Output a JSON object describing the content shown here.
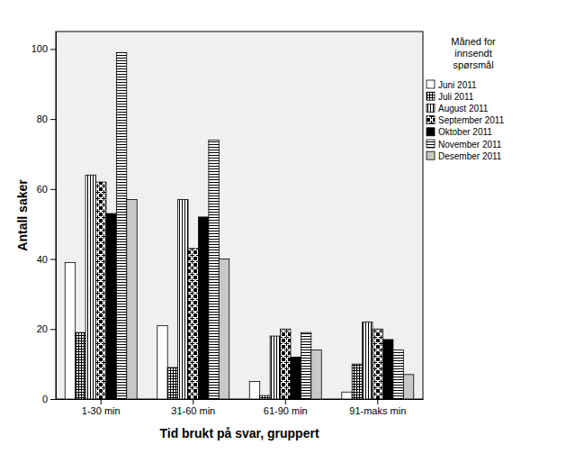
{
  "chart_data": {
    "type": "bar",
    "x_label": "Tid brukt på svar, gruppert",
    "y_label": "Antall saker",
    "legend_title": [
      "Måned for",
      "innsendt",
      "spørsmål"
    ],
    "categories": [
      "1-30 min",
      "31-60 min",
      "61-90 min",
      "91-maks min"
    ],
    "series": [
      {
        "name": "Juni 2011",
        "color": "#ffffff",
        "values": [
          39,
          21,
          5,
          2
        ]
      },
      {
        "name": "Juli 2011",
        "color": "#ffffff",
        "values": [
          19,
          9,
          1,
          10
        ]
      },
      {
        "name": "August 2011",
        "color": "#ffffff",
        "values": [
          64,
          57,
          18,
          22
        ]
      },
      {
        "name": "September 2011",
        "color": "#ffffff",
        "values": [
          62,
          43,
          20,
          20
        ]
      },
      {
        "name": "Oktober 2011",
        "color": "#000000",
        "values": [
          53,
          52,
          12,
          17
        ]
      },
      {
        "name": "November 2011",
        "color": "#ffffff",
        "values": [
          99,
          74,
          19,
          14
        ]
      },
      {
        "name": "Desember 2011",
        "color": "#c8c8c8",
        "values": [
          57,
          40,
          14,
          7
        ]
      }
    ],
    "ylim": [
      0,
      105
    ],
    "yticks": [
      0,
      20,
      40,
      60,
      80,
      100
    ],
    "grid": false,
    "legend": "right"
  }
}
